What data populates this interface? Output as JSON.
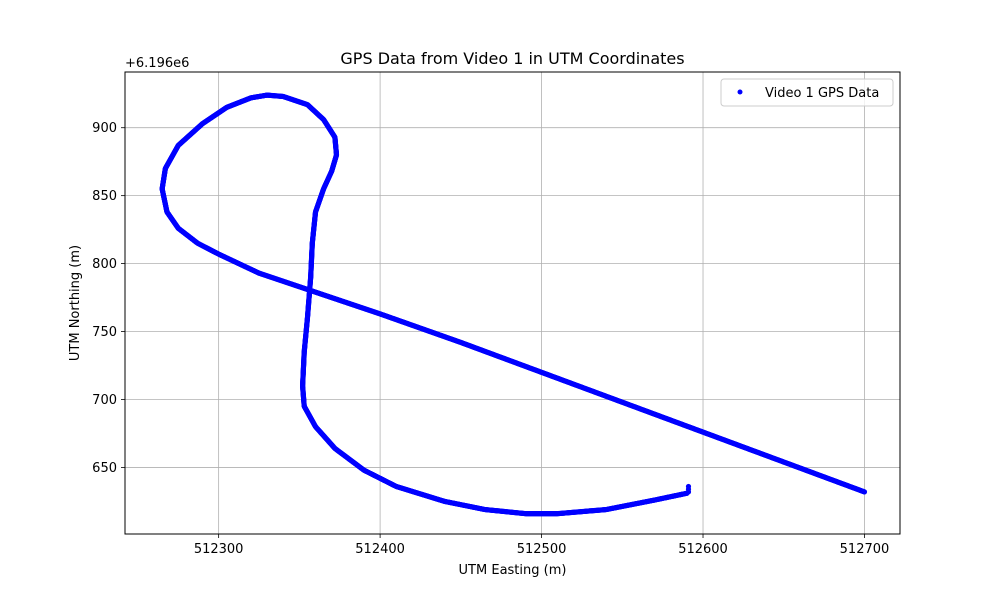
{
  "chart_data": {
    "type": "scatter",
    "title": "GPS Data from Video 1 in UTM Coordinates",
    "xlabel": "UTM Easting (m)",
    "ylabel": "UTM Northing (m)",
    "y_offset_label": "+6.196e6",
    "xlim": [
      512242,
      512722
    ],
    "ylim": [
      601,
      941
    ],
    "xticks": [
      512300,
      512400,
      512500,
      512600,
      512700
    ],
    "yticks": [
      650,
      700,
      750,
      800,
      850,
      900
    ],
    "grid": true,
    "legend_position": "top-right",
    "marker_color": "#0000ff",
    "series": [
      {
        "name": "Video 1 GPS Data",
        "path_points": [
          [
            512700,
            632
          ],
          [
            512650,
            654
          ],
          [
            512600,
            676
          ],
          [
            512550,
            698
          ],
          [
            512500,
            720
          ],
          [
            512450,
            742
          ],
          [
            512400,
            763
          ],
          [
            512350,
            783
          ],
          [
            512325,
            793
          ],
          [
            512300,
            807
          ],
          [
            512287,
            815
          ],
          [
            512275,
            826
          ],
          [
            512268,
            838
          ],
          [
            512265,
            855
          ],
          [
            512267,
            870
          ],
          [
            512275,
            887
          ],
          [
            512290,
            903
          ],
          [
            512305,
            915
          ],
          [
            512320,
            922
          ],
          [
            512330,
            924
          ],
          [
            512340,
            923
          ],
          [
            512355,
            917
          ],
          [
            512365,
            906
          ],
          [
            512372,
            893
          ],
          [
            512373,
            880
          ],
          [
            512370,
            868
          ],
          [
            512365,
            855
          ],
          [
            512360,
            838
          ],
          [
            512358,
            815
          ],
          [
            512357,
            790
          ],
          [
            512355,
            760
          ],
          [
            512353,
            735
          ],
          [
            512352,
            710
          ],
          [
            512353,
            695
          ],
          [
            512360,
            680
          ],
          [
            512372,
            664
          ],
          [
            512390,
            648
          ],
          [
            512410,
            636
          ],
          [
            512440,
            625
          ],
          [
            512465,
            619
          ],
          [
            512490,
            616
          ],
          [
            512510,
            616
          ],
          [
            512540,
            619
          ],
          [
            512570,
            626
          ],
          [
            512590,
            631
          ]
        ],
        "end_cluster": [
          [
            512591,
            632
          ],
          [
            512591,
            634
          ],
          [
            512591,
            636
          ]
        ]
      }
    ]
  }
}
